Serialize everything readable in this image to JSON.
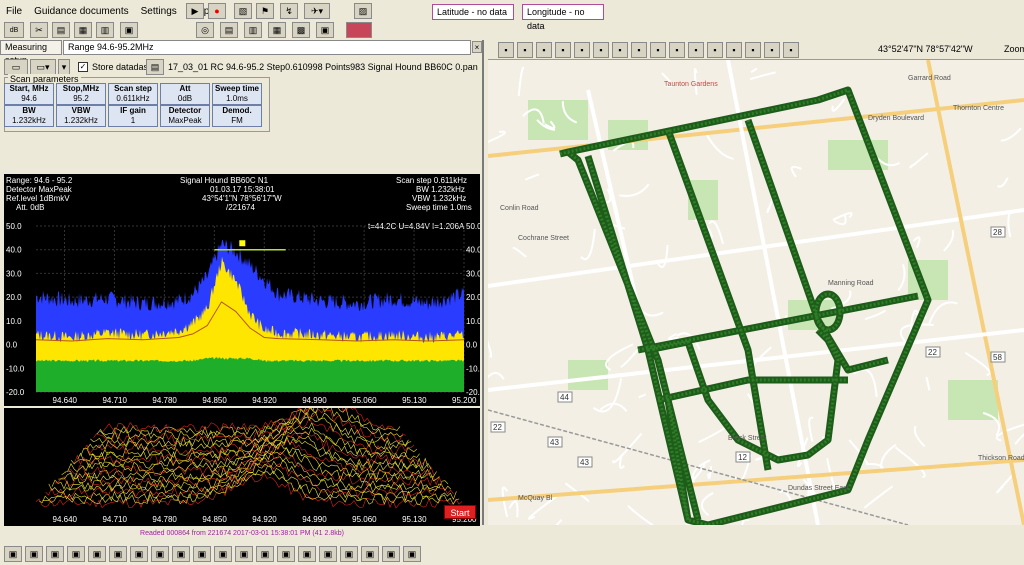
{
  "menu": [
    "File",
    "Guidance documents",
    "Settings",
    "Help"
  ],
  "latitude": "Latitude - no data",
  "longitude": "Longitude - no data",
  "tabs": {
    "measuring": "Measuring setup",
    "range": "Range 94.6-95.2MHz"
  },
  "store_db_label": "Store datadase",
  "file_name": "17_03_01 RC 94.6-95.2 Step0.610998 Points983 Signal Hound BB60C 0.pan",
  "scan_params_title": "Scan parameters",
  "params": [
    {
      "label": "Start, MHz",
      "value": "94.6"
    },
    {
      "label": "Stop,MHz",
      "value": "95.2"
    },
    {
      "label": "Scan step",
      "value": "0.611kHz"
    },
    {
      "label": "Att",
      "value": "0dB"
    },
    {
      "label": "Sweep time",
      "value": "1.0ms"
    },
    {
      "label": "BW",
      "value": "1.232kHz"
    },
    {
      "label": "VBW",
      "value": "1.232kHz"
    },
    {
      "label": "IF gain",
      "value": "1"
    },
    {
      "label": "Detector",
      "value": "MaxPeak"
    },
    {
      "label": "Demod.",
      "value": "FM"
    }
  ],
  "spectrum_header": {
    "range": "Range: 94.6 - 95.2",
    "detector": "Detector MaxPeak",
    "reflevel": "Ref.level 1dBmkV",
    "att": "Att. 0dB",
    "device": "Signal Hound BB60C N1",
    "datetime": "01.03.17 15:38:01",
    "coords": "43°54'1\"N 78°56'17\"W",
    "counter": "/221674",
    "scanstep": "Scan step 0.611kHz",
    "bw": "BW 1.232kHz",
    "vbw": "VBW 1.232kHz",
    "sweep": "Sweep time 1.0ms",
    "status": "t=44.2C U=4.84V I=1.206A"
  },
  "y_ticks": [
    "50.0",
    "40.0",
    "30.0",
    "20.0",
    "10.0",
    "0.0",
    "-10.0",
    "-20.0"
  ],
  "x_ticks": [
    "94.640",
    "94.710",
    "94.780",
    "94.850",
    "94.920",
    "94.990",
    "95.060",
    "95.130",
    "95.200"
  ],
  "waterfall_caption": "Readed 000864 from 221674  2017-03-01 15:38:01 PM (41 2.8kb)",
  "start_label": "Start",
  "map_coords": "43°52'47\"N 78°57'42\"W",
  "zoom_label": "Zoom",
  "map_labels": [
    {
      "text": "Taunton Gardens"
    },
    {
      "text": "Thornton Centre"
    },
    {
      "text": "Dryden Boulevard"
    },
    {
      "text": "Conlin Road"
    },
    {
      "text": "Manning Road"
    },
    {
      "text": "Dundas Street East"
    },
    {
      "text": "Thickson Road"
    },
    {
      "text": "Garrard Road"
    },
    {
      "text": "Cochrane Street"
    },
    {
      "text": "Brock Street"
    },
    {
      "text": "McQuay Bl"
    }
  ],
  "road_numbers": [
    "28",
    "58",
    "22",
    "43",
    "12",
    "44",
    "43",
    "22"
  ],
  "chart_data": {
    "type": "line",
    "x_range": [
      94.6,
      95.2
    ],
    "ylim": [
      -20,
      50
    ],
    "series": [
      {
        "x": [
          94.6,
          94.65,
          94.7,
          94.75,
          94.8,
          94.82,
          94.84,
          94.86,
          94.88,
          94.9,
          94.92,
          94.94,
          95.0,
          95.05,
          95.1,
          95.15,
          95.2
        ],
        "values": [
          19,
          17,
          18,
          16,
          17,
          20,
          27,
          41,
          38,
          32,
          26,
          20,
          17,
          16,
          18,
          16,
          20
        ]
      },
      {
        "x": [
          94.6,
          94.65,
          94.7,
          94.75,
          94.8,
          94.82,
          94.84,
          94.86,
          94.88,
          94.9,
          94.92,
          94.94,
          95.0,
          95.05,
          95.1,
          95.15,
          95.2
        ],
        "values": [
          3,
          2,
          4,
          3,
          5,
          8,
          14,
          34,
          26,
          12,
          5,
          4,
          3,
          2,
          3,
          2,
          3
        ]
      },
      {
        "x": [
          94.6,
          94.65,
          94.7,
          94.75,
          94.8,
          94.82,
          94.84,
          94.86,
          94.88,
          94.9,
          94.92,
          94.94,
          95.0,
          95.05,
          95.1,
          95.15,
          95.2
        ],
        "values": [
          -7,
          -7,
          -7,
          -7,
          -7,
          -7,
          -6,
          -6,
          -6,
          -6,
          -7,
          -7,
          -7,
          -7,
          -7,
          -7,
          -7
        ]
      }
    ]
  }
}
